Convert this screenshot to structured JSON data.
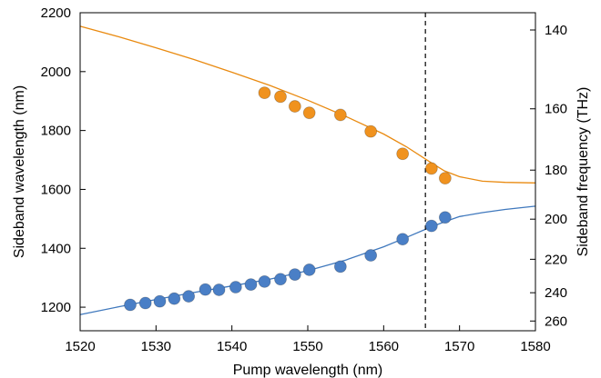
{
  "chart_data": {
    "type": "scatter",
    "title": "",
    "xlabel": "Pump wavelength (nm)",
    "ylabel": "Sideband wavelength (nm)",
    "y2label": "Sideband frequency (THz)",
    "xlim": [
      1520,
      1580
    ],
    "ylim": [
      1120,
      2200
    ],
    "xticks": [
      "1520",
      "1530",
      "1540",
      "1550",
      "1560",
      "1570",
      "1580"
    ],
    "yticks": [
      "1200",
      "1400",
      "1600",
      "1800",
      "2000",
      "2200"
    ],
    "y2ticks": [
      "140",
      "160",
      "180",
      "200",
      "220",
      "240",
      "260"
    ],
    "vline_x": 1565.5,
    "series": [
      {
        "color": "#f0921e",
        "line_color": "#e98a10",
        "points": [
          [
            1544.3,
            1928
          ],
          [
            1546.4,
            1915
          ],
          [
            1548.3,
            1882
          ],
          [
            1550.2,
            1860
          ],
          [
            1554.3,
            1853
          ],
          [
            1558.3,
            1797
          ],
          [
            1562.5,
            1721
          ],
          [
            1566.3,
            1671
          ],
          [
            1568.1,
            1638
          ]
        ],
        "fit": [
          [
            1520,
            2154
          ],
          [
            1525,
            2119
          ],
          [
            1530,
            2081
          ],
          [
            1535,
            2041
          ],
          [
            1540,
            1998
          ],
          [
            1545,
            1953
          ],
          [
            1550,
            1903
          ],
          [
            1555,
            1848
          ],
          [
            1560,
            1788
          ],
          [
            1563,
            1745
          ],
          [
            1566,
            1695
          ],
          [
            1568,
            1663
          ],
          [
            1570,
            1643
          ],
          [
            1573,
            1628
          ],
          [
            1576,
            1624
          ],
          [
            1580,
            1622
          ]
        ]
      },
      {
        "color": "#4a7fc6",
        "line_color": "#3f78bd",
        "points": [
          [
            1526.6,
            1208
          ],
          [
            1528.6,
            1214
          ],
          [
            1530.5,
            1220
          ],
          [
            1532.4,
            1229
          ],
          [
            1534.3,
            1237
          ],
          [
            1536.5,
            1260
          ],
          [
            1538.3,
            1259
          ],
          [
            1540.5,
            1268
          ],
          [
            1542.5,
            1277
          ],
          [
            1544.3,
            1287
          ],
          [
            1546.4,
            1295
          ],
          [
            1548.3,
            1311
          ],
          [
            1550.2,
            1327
          ],
          [
            1554.3,
            1338
          ],
          [
            1558.3,
            1376
          ],
          [
            1562.5,
            1431
          ],
          [
            1566.3,
            1476
          ],
          [
            1568.1,
            1505
          ]
        ],
        "fit": [
          [
            1520,
            1175
          ],
          [
            1525,
            1201
          ],
          [
            1530,
            1226
          ],
          [
            1535,
            1250
          ],
          [
            1540,
            1272
          ],
          [
            1545,
            1295
          ],
          [
            1550,
            1324
          ],
          [
            1555,
            1360
          ],
          [
            1560,
            1405
          ],
          [
            1563,
            1437
          ],
          [
            1566,
            1470
          ],
          [
            1568,
            1490
          ],
          [
            1570,
            1508
          ],
          [
            1573,
            1521
          ],
          [
            1576,
            1532
          ],
          [
            1580,
            1543
          ]
        ]
      }
    ]
  }
}
